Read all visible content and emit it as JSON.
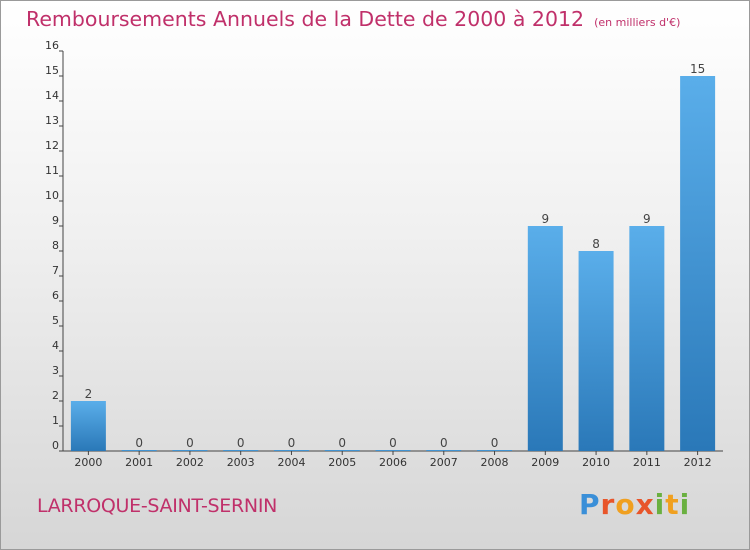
{
  "header": {
    "title": "Remboursements Annuels de la Dette de 2000 à 2012",
    "subtitle": "(en milliers d'€)"
  },
  "footer": {
    "commune": "LARROQUE-SAINT-SERNIN",
    "logo_text": "Proxiti"
  },
  "colors": {
    "bar_top": "#5aaeea",
    "bar_bottom": "#2a78b8",
    "title": "#c0306a"
  },
  "chart_data": {
    "type": "bar",
    "title": "Remboursements Annuels de la Dette de 2000 à 2012",
    "subtitle": "(en milliers d'€)",
    "categories": [
      "2000",
      "2001",
      "2002",
      "2003",
      "2004",
      "2005",
      "2006",
      "2007",
      "2008",
      "2009",
      "2010",
      "2011",
      "2012"
    ],
    "values": [
      2,
      0,
      0,
      0,
      0,
      0,
      0,
      0,
      0,
      9,
      8,
      9,
      15
    ],
    "ylim": [
      0,
      16
    ],
    "yticks": [
      0,
      1,
      2,
      3,
      4,
      5,
      6,
      7,
      8,
      9,
      10,
      11,
      12,
      13,
      14,
      15,
      16
    ],
    "grid": false,
    "legend": "none"
  }
}
